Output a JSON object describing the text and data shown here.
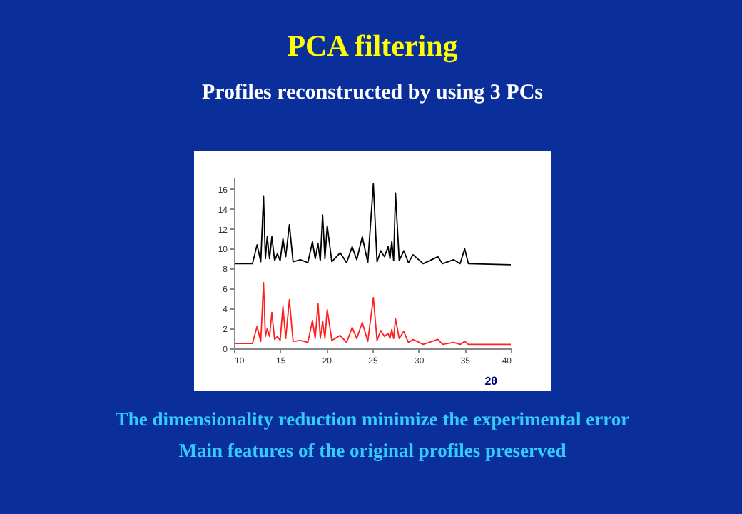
{
  "chart_data": {
    "type": "line",
    "title": "PCA filtering",
    "subtitle": "Profiles reconstructed by using 3 PCs",
    "xlabel": "2θ",
    "x": [
      10,
      12.0,
      12.5,
      12.9,
      13.2,
      13.4,
      13.6,
      13.85,
      14.1,
      14.4,
      14.7,
      15.0,
      15.3,
      15.6,
      16.0,
      16.4,
      17.2,
      18.0,
      18.5,
      18.8,
      19.1,
      19.35,
      19.6,
      19.85,
      20.1,
      20.6,
      21.5,
      22.2,
      22.8,
      23.3,
      23.9,
      24.5,
      25.1,
      25.5,
      25.9,
      26.3,
      26.7,
      26.9,
      27.1,
      27.3,
      27.5,
      27.9,
      28.4,
      28.9,
      29.4,
      30.5,
      32.1,
      32.6,
      33.8,
      34.5,
      35.0,
      35.4,
      40
    ],
    "series": [
      {
        "color": "#000000",
        "values": [
          8.5,
          8.5,
          10.4,
          8.7,
          15.3,
          9.0,
          11.2,
          9.0,
          11.2,
          8.8,
          9.5,
          8.8,
          11.0,
          9.2,
          12.4,
          8.7,
          8.9,
          8.6,
          10.7,
          9.0,
          10.5,
          8.8,
          13.4,
          9.0,
          12.3,
          8.7,
          9.6,
          8.6,
          10.2,
          8.9,
          11.2,
          8.6,
          16.5,
          8.7,
          9.8,
          9.2,
          10.2,
          9.0,
          10.7,
          8.8,
          15.6,
          8.8,
          9.8,
          8.6,
          9.4,
          8.5,
          9.2,
          8.5,
          8.9,
          8.5,
          10.0,
          8.5,
          8.4
        ]
      },
      {
        "color": "#ff2020",
        "values": [
          0.5,
          0.5,
          2.2,
          0.7,
          6.6,
          1.2,
          2.0,
          1.2,
          3.6,
          0.9,
          1.2,
          0.8,
          4.2,
          1.0,
          4.9,
          0.7,
          0.8,
          0.6,
          2.8,
          1.0,
          4.5,
          1.0,
          2.7,
          1.0,
          3.9,
          0.8,
          1.3,
          0.6,
          2.1,
          1.0,
          2.6,
          0.7,
          5.1,
          0.8,
          1.8,
          1.2,
          1.5,
          1.0,
          1.9,
          1.0,
          3.0,
          1.0,
          1.7,
          0.6,
          0.9,
          0.4,
          0.9,
          0.4,
          0.6,
          0.4,
          0.7,
          0.4,
          0.4
        ]
      }
    ],
    "xlim": [
      10,
      40
    ],
    "xticks": [
      10,
      15,
      20,
      25,
      30,
      35,
      40
    ],
    "ylim": [
      0,
      17.2
    ],
    "yticks": [
      0,
      2,
      4,
      6,
      8,
      10,
      12,
      14,
      16
    ],
    "grid": false,
    "legend": false,
    "marker": "none",
    "line_style": "solid",
    "annotations": [
      "The dimensionality reduction minimize the experimental error",
      "Main features of the original profiles preserved"
    ]
  }
}
